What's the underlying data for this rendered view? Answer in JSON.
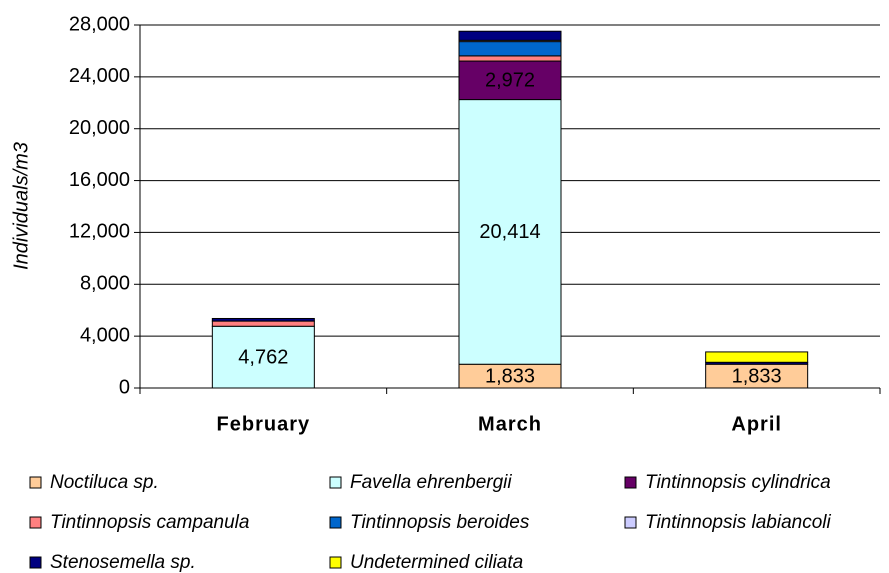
{
  "chart_data": {
    "type": "stacked_bar",
    "ylabel": "Individuals/m3",
    "categories": [
      "February",
      "March",
      "April"
    ],
    "ylim": [
      0,
      28000
    ],
    "yticks": [
      0,
      {
        "value": 4000,
        "label": "4,000"
      },
      {
        "value": 8000,
        "label": "8,000"
      },
      {
        "value": 12000,
        "label": "12,000"
      },
      {
        "value": 16000,
        "label": "16,000"
      },
      {
        "value": 20000,
        "label": "20,000"
      },
      {
        "value": 24000,
        "label": "24,000"
      },
      {
        "value": 28000,
        "label": "28,000"
      }
    ],
    "grid": true,
    "legend": "bottom",
    "series": [
      {
        "name": "Noctiluca sp.",
        "color": "#FFCC99",
        "values": [
          0,
          1833,
          1833
        ],
        "value_labels": [
          null,
          "1,833",
          "1,833"
        ]
      },
      {
        "name": "Favella ehrenbergii",
        "color": "#CCFFFF",
        "values": [
          4762,
          20414,
          0
        ],
        "value_labels": [
          "4,762",
          "20,414",
          null
        ]
      },
      {
        "name": "Tintinnopsis cylindrica",
        "color": "#660066",
        "values": [
          0,
          2972,
          0
        ],
        "value_labels": [
          null,
          "2,972",
          null
        ]
      },
      {
        "name": "Tintinnopsis campanula",
        "color": "#FF8080",
        "values": [
          400,
          400,
          0
        ]
      },
      {
        "name": "Tintinnopsis beroides",
        "color": "#0066CC",
        "values": [
          0,
          1100,
          0
        ]
      },
      {
        "name": "Tintinnopsis labiancoli",
        "color": "#CCCCFF",
        "values": [
          0,
          100,
          0
        ]
      },
      {
        "name": "Stenosemella sp.",
        "color": "#000080",
        "values": [
          200,
          700,
          150
        ]
      },
      {
        "name": "Undetermined ciliata",
        "color": "#FFFF00",
        "values": [
          0,
          0,
          800
        ]
      }
    ]
  }
}
